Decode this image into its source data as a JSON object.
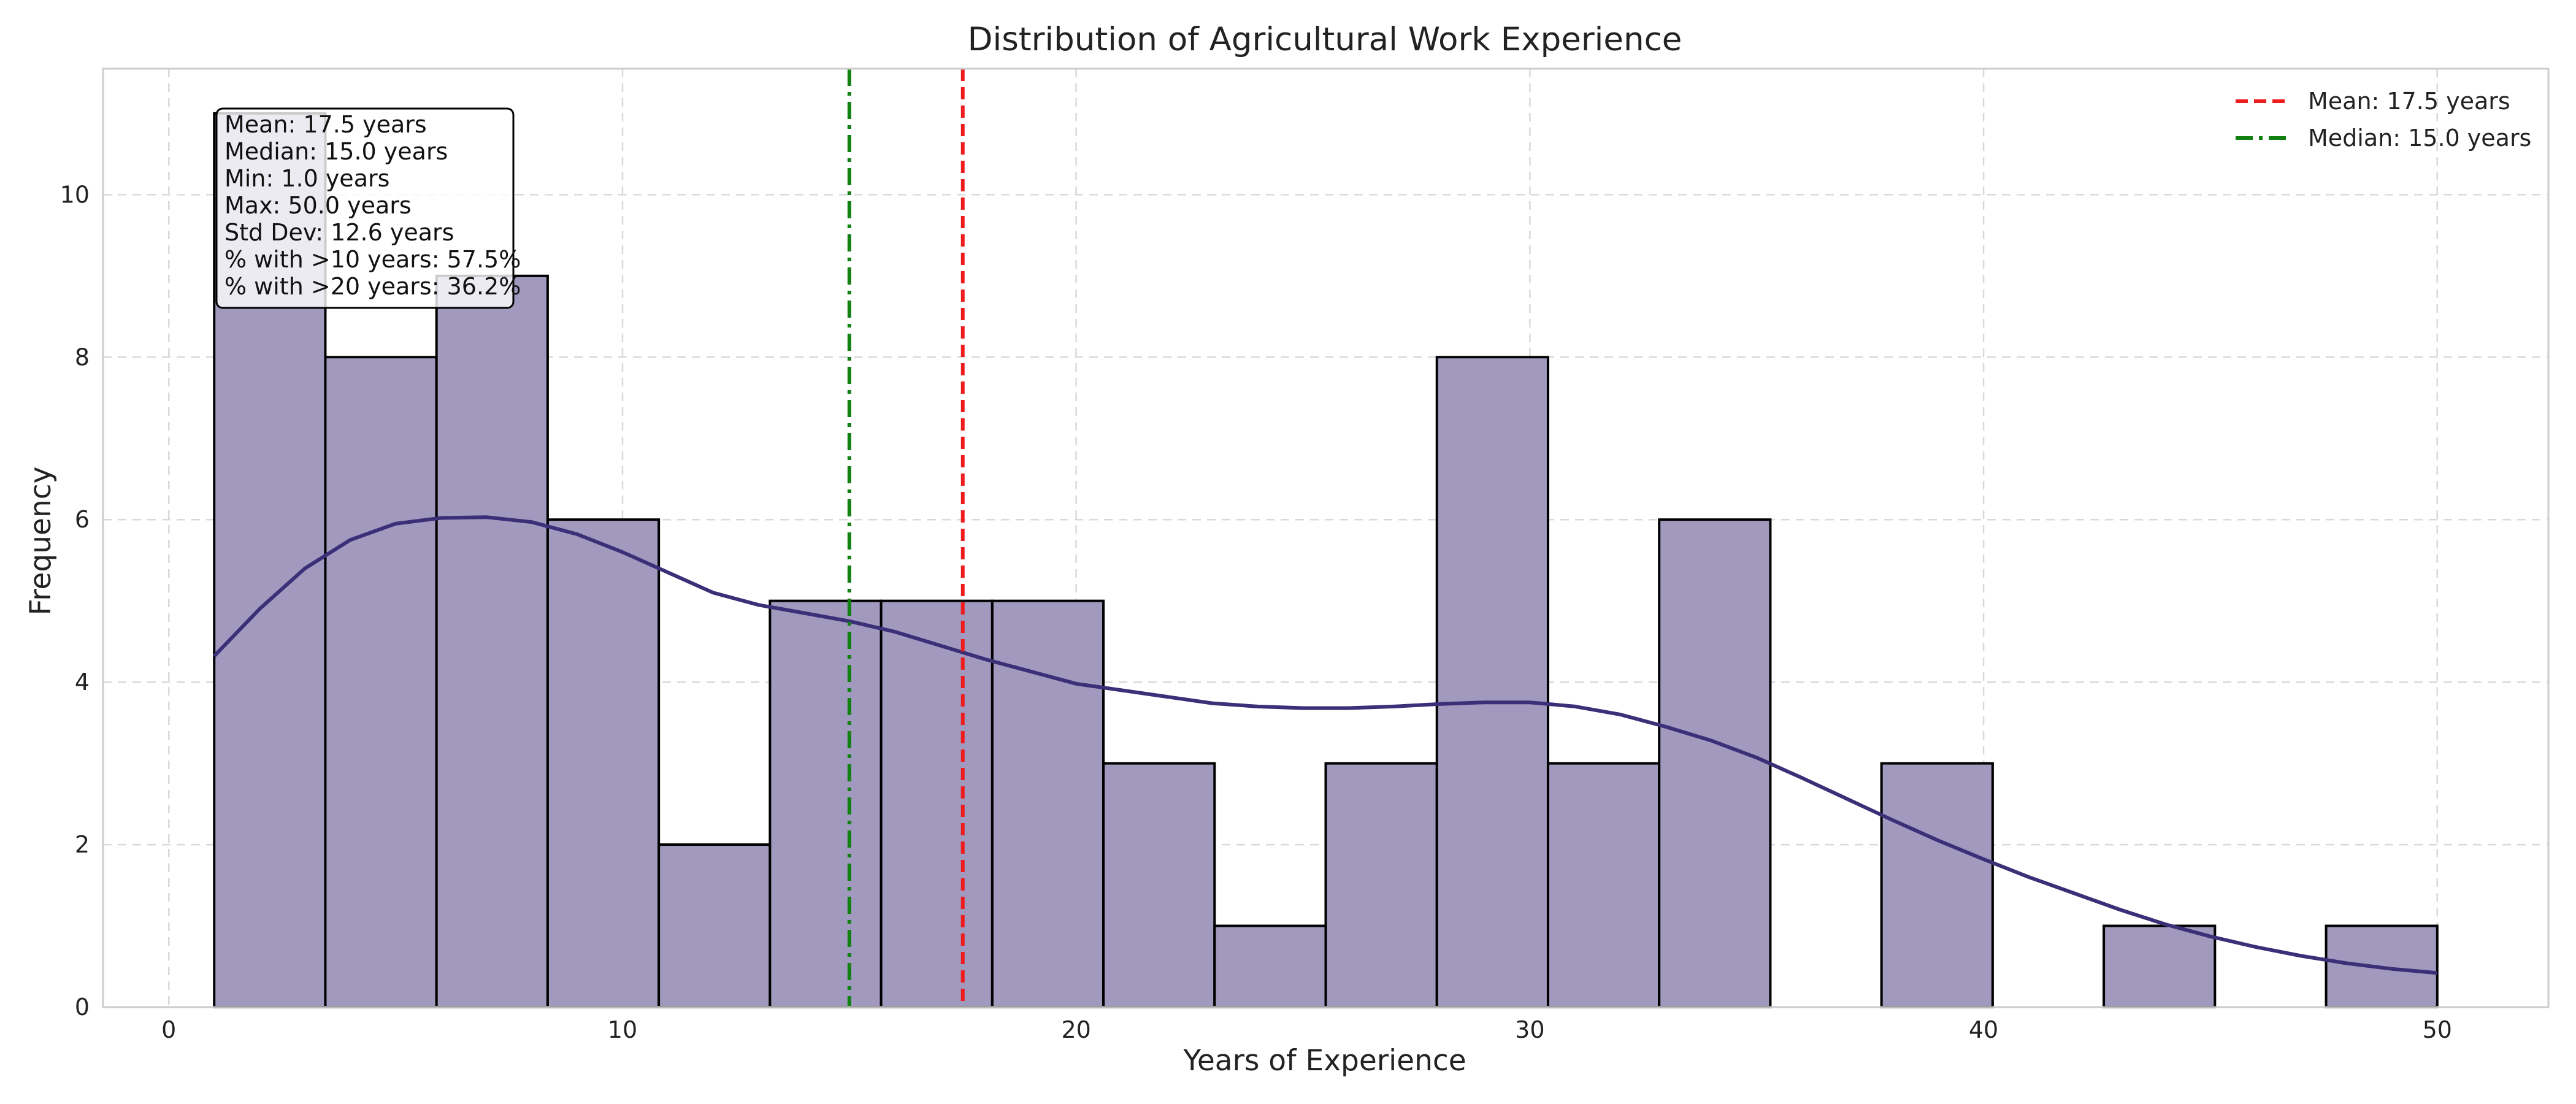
{
  "chart_data": {
    "type": "histogram",
    "title": "Distribution of Agricultural Work Experience",
    "xlabel": "Years of Experience",
    "ylabel": "Frequency",
    "xlim": [
      -1.45,
      52.45
    ],
    "ylim": [
      0,
      11.55
    ],
    "xticks": [
      0,
      10,
      20,
      30,
      40,
      50
    ],
    "yticks": [
      0,
      2,
      4,
      6,
      8,
      10
    ],
    "grid": true,
    "bin_edges": [
      1.0,
      3.45,
      5.9,
      8.35,
      10.8,
      13.25,
      15.7,
      18.15,
      20.6,
      23.05,
      25.5,
      27.95,
      30.4,
      32.85,
      35.3,
      37.75,
      40.2,
      42.65,
      45.1,
      47.55,
      50.0
    ],
    "counts": [
      11,
      8,
      9,
      6,
      2,
      5,
      5,
      5,
      3,
      1,
      3,
      8,
      3,
      6,
      0,
      3,
      0,
      1,
      0,
      1
    ],
    "bar_color": "#a299bf",
    "bar_edge_color": "#000000",
    "kde": {
      "color": "#3b2f78",
      "x": [
        1,
        2,
        3,
        4,
        5,
        6,
        7,
        8,
        9,
        10,
        11,
        12,
        13,
        14,
        15,
        16,
        17,
        18,
        19,
        20,
        21,
        22,
        23,
        24,
        25,
        26,
        27,
        28,
        29,
        30,
        31,
        32,
        33,
        34,
        35,
        36,
        37,
        38,
        39,
        40,
        41,
        42,
        43,
        44,
        45,
        46,
        47,
        48,
        49,
        50
      ],
      "y": [
        4.32,
        4.9,
        5.4,
        5.75,
        5.95,
        6.02,
        6.03,
        5.97,
        5.82,
        5.6,
        5.35,
        5.1,
        4.95,
        4.85,
        4.75,
        4.62,
        4.45,
        4.28,
        4.13,
        3.98,
        3.9,
        3.82,
        3.74,
        3.7,
        3.68,
        3.68,
        3.7,
        3.73,
        3.75,
        3.75,
        3.7,
        3.6,
        3.45,
        3.28,
        3.07,
        2.82,
        2.56,
        2.3,
        2.05,
        1.82,
        1.6,
        1.4,
        1.2,
        1.02,
        0.87,
        0.74,
        0.63,
        0.54,
        0.47,
        0.42
      ]
    },
    "reference_lines": [
      {
        "name": "Mean: 17.5 years",
        "value": 17.5,
        "color": "#ee1c1c",
        "style": "dashed"
      },
      {
        "name": "Median: 15.0 years",
        "value": 15.0,
        "color": "#118011",
        "style": "dashdot"
      }
    ],
    "legend_position": "top-right",
    "stats_box": [
      "Mean: 17.5 years",
      "Median: 15.0 years",
      "Min: 1.0 years",
      "Max: 50.0 years",
      "Std Dev: 12.6 years",
      "% with >10 years: 57.5%",
      "% with >20 years: 36.2%"
    ]
  }
}
